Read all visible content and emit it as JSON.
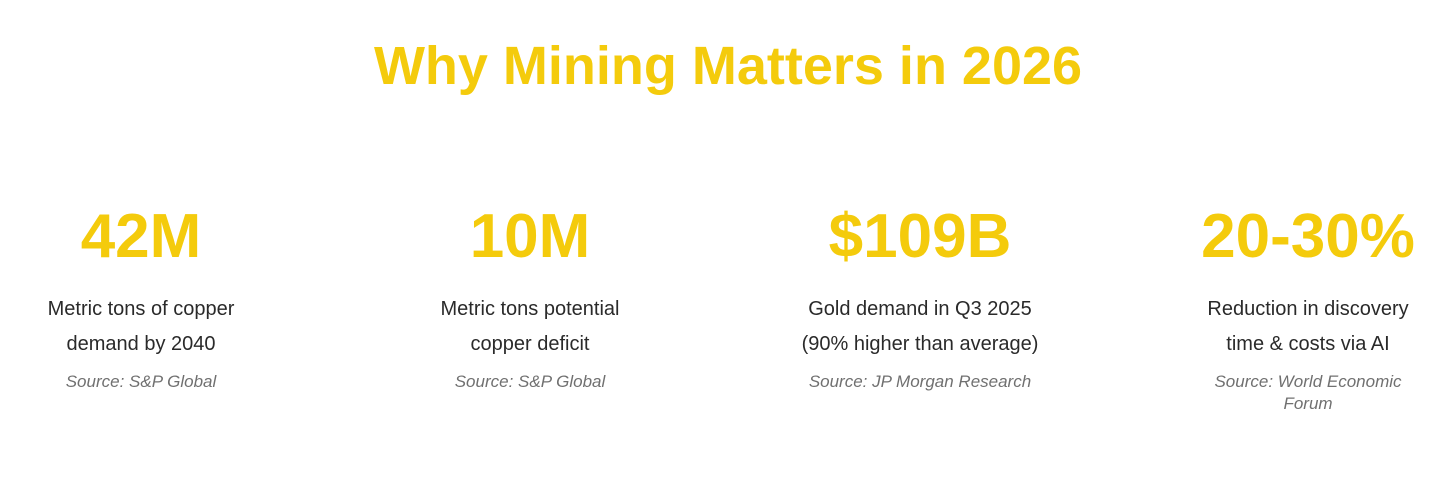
{
  "title": "Why Mining Matters in 2026",
  "accent_color": "#F4CB0C",
  "stats": [
    {
      "value": "42M",
      "description_lines": [
        "Metric tons of copper",
        "demand by 2040"
      ],
      "source": "Source: S&P Global"
    },
    {
      "value": "10M",
      "description_lines": [
        "Metric tons potential",
        "copper deficit"
      ],
      "source": "Source: S&P Global"
    },
    {
      "value": "$109B",
      "description_lines": [
        "Gold demand in Q3 2025",
        "(90% higher than average)"
      ],
      "source": "Source: JP Morgan Research"
    },
    {
      "value": "20-30%",
      "description_lines": [
        "Reduction in discovery",
        "time & costs via AI"
      ],
      "source": "Source: World Economic Forum"
    }
  ]
}
